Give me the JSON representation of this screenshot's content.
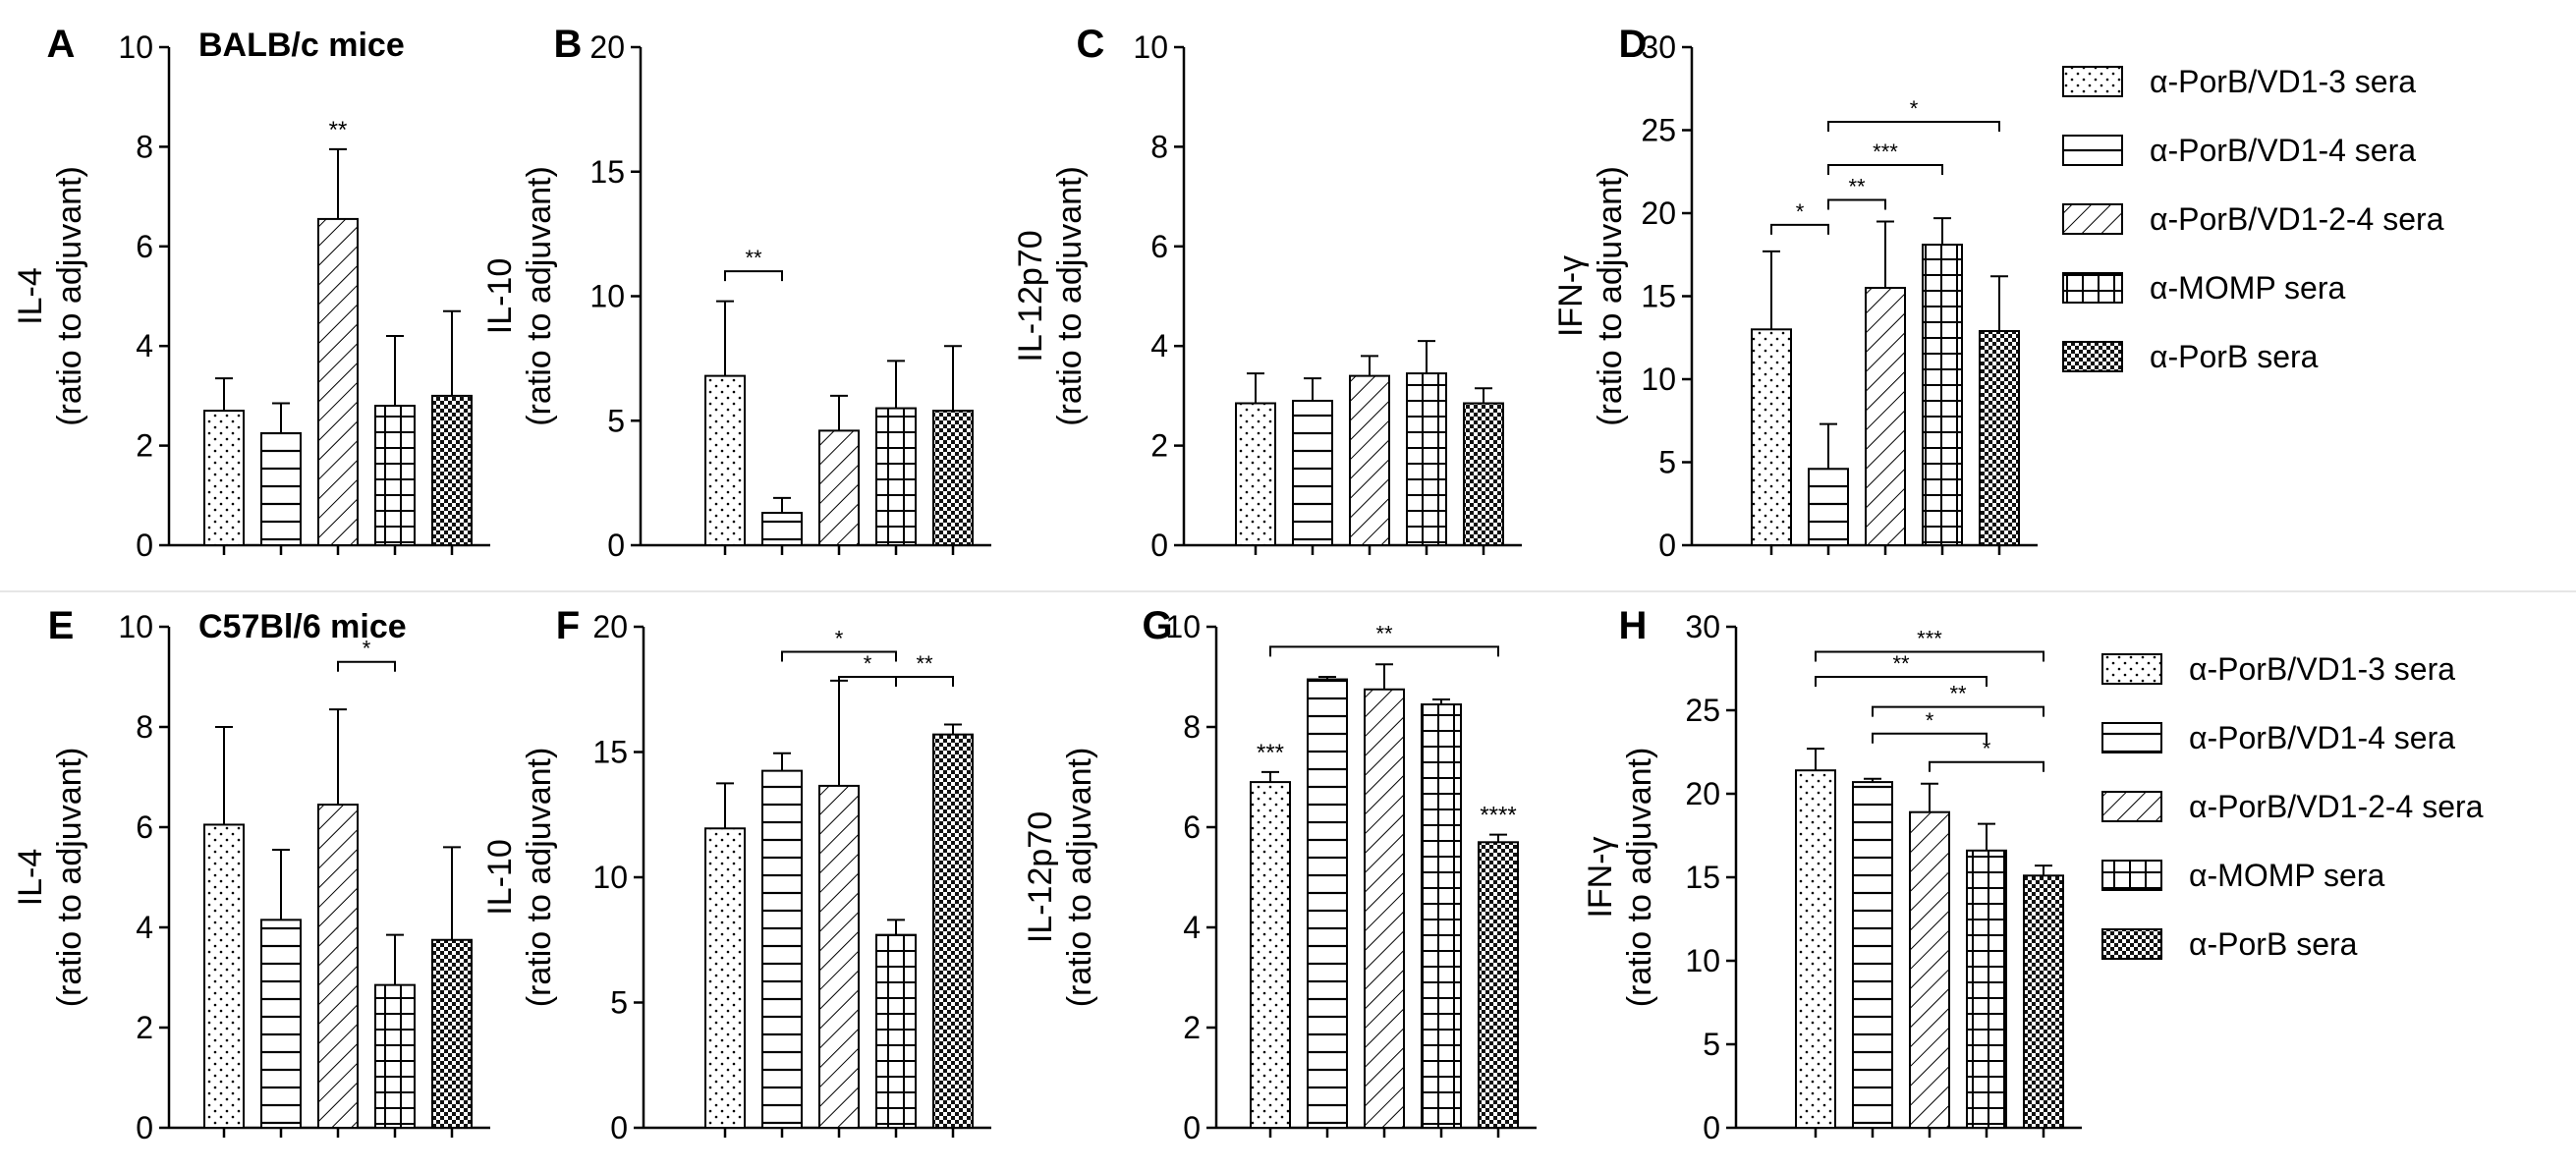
{
  "colors": {
    "ink": "#000000",
    "background": "#ffffff",
    "separator": "#e6e6e6"
  },
  "legend": {
    "items": [
      {
        "label": "α-PorB/VD1-3 sera",
        "pattern": "dots"
      },
      {
        "label": "α-PorB/VD1-4 sera",
        "pattern": "hlines"
      },
      {
        "label": "α-PorB/VD1-2-4 sera",
        "pattern": "diag"
      },
      {
        "label": "α-MOMP sera",
        "pattern": "grid"
      },
      {
        "label": "α-PorB sera",
        "pattern": "check"
      }
    ]
  },
  "chart_data": [
    {
      "type": "bar",
      "panel": "A",
      "title": "BALB/c mice",
      "ylabel": "IL-4",
      "ylabel2": "(ratio to adjuvant)",
      "ylim": [
        0,
        10
      ],
      "yticks": [
        0,
        2,
        4,
        6,
        8,
        10
      ],
      "values": [
        2.7,
        2.25,
        6.55,
        2.8,
        3.0
      ],
      "errors": [
        0.65,
        0.6,
        1.4,
        1.4,
        1.7
      ],
      "bar_labels": [
        "",
        "",
        "**",
        "",
        ""
      ],
      "brackets": []
    },
    {
      "type": "bar",
      "panel": "B",
      "title": "",
      "ylabel": "IL-10",
      "ylabel2": "(ratio to adjuvant)",
      "ylim": [
        0,
        20
      ],
      "yticks": [
        0,
        5,
        10,
        15,
        20
      ],
      "values": [
        6.8,
        1.3,
        4.6,
        5.5,
        5.4
      ],
      "errors": [
        3.0,
        0.6,
        1.4,
        1.9,
        2.6
      ],
      "bar_labels": [
        "",
        "",
        "",
        "",
        ""
      ],
      "brackets": [
        {
          "from": 0,
          "to": 1,
          "y": 11,
          "label": "**"
        }
      ]
    },
    {
      "type": "bar",
      "panel": "C",
      "title": "",
      "ylabel": "IL-12p70",
      "ylabel2": "(ratio to adjuvant)",
      "ylim": [
        0,
        10
      ],
      "yticks": [
        0,
        2,
        4,
        6,
        8,
        10
      ],
      "values": [
        2.85,
        2.9,
        3.4,
        3.45,
        2.85
      ],
      "errors": [
        0.6,
        0.45,
        0.4,
        0.65,
        0.3
      ],
      "bar_labels": [
        "",
        "",
        "",
        "",
        ""
      ],
      "brackets": []
    },
    {
      "type": "bar",
      "panel": "D",
      "title": "",
      "ylabel": "IFN-γ",
      "ylabel2": "(ratio to adjuvant)",
      "ylim": [
        0,
        30
      ],
      "yticks": [
        0,
        5,
        10,
        15,
        20,
        25,
        30
      ],
      "values": [
        13.0,
        4.6,
        15.5,
        18.1,
        12.9
      ],
      "errors": [
        4.7,
        2.7,
        4.0,
        1.6,
        3.3
      ],
      "bar_labels": [
        "",
        "",
        "",
        "",
        ""
      ],
      "brackets": [
        {
          "from": 0,
          "to": 1,
          "y": 19.3,
          "label": "*"
        },
        {
          "from": 1,
          "to": 2,
          "y": 20.8,
          "label": "**"
        },
        {
          "from": 1,
          "to": 3,
          "y": 22.9,
          "label": "***"
        },
        {
          "from": 1,
          "to": 4,
          "y": 25.5,
          "label": "*"
        }
      ]
    },
    {
      "type": "bar",
      "panel": "E",
      "title": "C57Bl/6 mice",
      "ylabel": "IL-4",
      "ylabel2": "(ratio to adjuvant)",
      "ylim": [
        0,
        10
      ],
      "yticks": [
        0,
        2,
        4,
        6,
        8,
        10
      ],
      "values": [
        6.05,
        4.15,
        6.45,
        2.85,
        3.75
      ],
      "errors": [
        1.95,
        1.4,
        1.9,
        1.0,
        1.85
      ],
      "bar_labels": [
        "",
        "",
        "",
        "",
        ""
      ],
      "brackets": [
        {
          "from": 2,
          "to": 3,
          "y": 9.3,
          "label": "*"
        }
      ]
    },
    {
      "type": "bar",
      "panel": "F",
      "title": "",
      "ylabel": "IL-10",
      "ylabel2": "(ratio to adjuvant)",
      "ylim": [
        0,
        20
      ],
      "yticks": [
        0,
        5,
        10,
        15,
        20
      ],
      "values": [
        11.95,
        14.25,
        13.65,
        7.7,
        15.7
      ],
      "errors": [
        1.8,
        0.7,
        4.2,
        0.6,
        0.4
      ],
      "bar_labels": [
        "",
        "",
        "",
        "",
        ""
      ],
      "brackets": [
        {
          "from": 1,
          "to": 3,
          "y": 19.0,
          "label": "*"
        },
        {
          "from": 2,
          "to": 3,
          "y": 18.0,
          "label": "*"
        },
        {
          "from": 3,
          "to": 4,
          "y": 18.0,
          "label": "**"
        }
      ]
    },
    {
      "type": "bar",
      "panel": "G",
      "title": "",
      "ylabel": "IL-12p70",
      "ylabel2": "(ratio to adjuvant)",
      "ylim": [
        0,
        10
      ],
      "yticks": [
        0,
        2,
        4,
        6,
        8,
        10
      ],
      "values": [
        6.9,
        8.95,
        8.75,
        8.45,
        5.7
      ],
      "errors": [
        0.2,
        0.05,
        0.5,
        0.1,
        0.15
      ],
      "bar_labels": [
        "***",
        "",
        "",
        "",
        "****"
      ],
      "brackets": [
        {
          "from": 0,
          "to": 4,
          "y": 9.6,
          "label": "**"
        }
      ]
    },
    {
      "type": "bar",
      "panel": "H",
      "title": "",
      "ylabel": "IFN-γ",
      "ylabel2": "(ratio to adjuvant)",
      "ylim": [
        0,
        30
      ],
      "yticks": [
        0,
        5,
        10,
        15,
        20,
        25,
        30
      ],
      "values": [
        21.4,
        20.7,
        18.9,
        16.6,
        15.1
      ],
      "errors": [
        1.3,
        0.2,
        1.7,
        1.6,
        0.6
      ],
      "bar_labels": [
        "",
        "",
        "",
        "",
        ""
      ],
      "brackets": [
        {
          "from": 0,
          "to": 4,
          "y": 28.5,
          "label": "***"
        },
        {
          "from": 0,
          "to": 3,
          "y": 27.0,
          "label": "**"
        },
        {
          "from": 1,
          "to": 4,
          "y": 25.2,
          "label": "**"
        },
        {
          "from": 1,
          "to": 3,
          "y": 23.6,
          "label": "*"
        },
        {
          "from": 2,
          "to": 4,
          "y": 21.9,
          "label": "*"
        }
      ]
    }
  ]
}
